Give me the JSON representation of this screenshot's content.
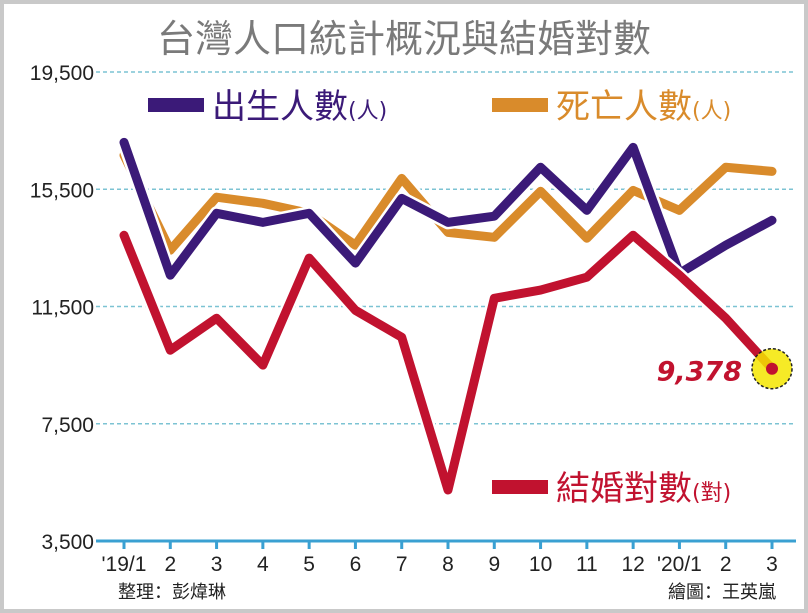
{
  "chart_data": {
    "type": "line",
    "title": "台灣人口統計概況與結婚對數",
    "categories": [
      "'19/1",
      "2",
      "3",
      "4",
      "5",
      "6",
      "7",
      "8",
      "9",
      "10",
      "11",
      "12",
      "'20/1",
      "2",
      "3"
    ],
    "ylim": [
      3500,
      19500
    ],
    "yticks": [
      3500,
      7500,
      11500,
      15500,
      19500
    ],
    "ytick_labels": [
      "3,500",
      "7,500",
      "11,500",
      "15,500",
      "19,500"
    ],
    "grid": true,
    "series": [
      {
        "name": "出生人數",
        "unit": "(人)",
        "color": "#3b1a78",
        "values": [
          17100,
          12570,
          14680,
          14370,
          14680,
          12980,
          15190,
          14370,
          14580,
          16250,
          14780,
          16930,
          12630,
          13590,
          14440
        ]
      },
      {
        "name": "死亡人數",
        "unit": "(人)",
        "color": "#d98b2b",
        "values": [
          16660,
          13420,
          15230,
          15020,
          14680,
          13590,
          15870,
          14030,
          13860,
          15430,
          13830,
          15460,
          14780,
          16250,
          16110
        ]
      },
      {
        "name": "結婚對數",
        "unit": "(對)",
        "color": "#c1122f",
        "values": [
          13930,
          10010,
          11100,
          9500,
          13150,
          11370,
          10450,
          5240,
          11780,
          12060,
          12500,
          13930,
          12570,
          11100,
          9378
        ]
      }
    ],
    "annotation": {
      "text": "9,378",
      "series": "結婚對數",
      "category": "3",
      "highlight_color": "#f5e600"
    }
  },
  "credits": {
    "left": "整理：彭煒琳",
    "right": "繪圖：王英嵐"
  },
  "colors": {
    "grid": "#7cc3d3",
    "axis": "#3aa0d2",
    "title": "#7a7a7a"
  }
}
